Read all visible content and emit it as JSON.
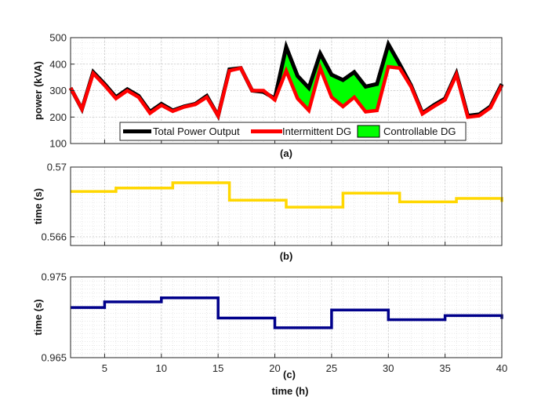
{
  "chart_data": [
    {
      "type": "area",
      "label": "(a)",
      "ylabel": "power (kVA)",
      "xlim": [
        2,
        40
      ],
      "ylim": [
        100,
        500
      ],
      "yticks": [
        100,
        200,
        300,
        400,
        500
      ],
      "grid": true,
      "legend_position": "bottom",
      "legend_orientation": "horizontal",
      "x": [
        2,
        3,
        4,
        5,
        6,
        7,
        8,
        9,
        10,
        11,
        12,
        13,
        14,
        15,
        16,
        17,
        18,
        19,
        20,
        21,
        22,
        23,
        24,
        25,
        26,
        27,
        28,
        29,
        30,
        31,
        32,
        33,
        34,
        35,
        36,
        37,
        38,
        39,
        40
      ],
      "series": [
        {
          "name": "Total Power Output",
          "color": "#000000",
          "values": [
            310,
            230,
            370,
            325,
            275,
            305,
            280,
            220,
            250,
            225,
            240,
            250,
            280,
            205,
            380,
            385,
            300,
            295,
            270,
            465,
            355,
            310,
            440,
            360,
            340,
            370,
            315,
            325,
            475,
            400,
            320,
            215,
            245,
            270,
            365,
            205,
            210,
            240,
            325
          ]
        },
        {
          "name": "Intermittent DG",
          "color": "#ff0000",
          "values": [
            310,
            230,
            365,
            320,
            270,
            300,
            275,
            215,
            245,
            222,
            238,
            248,
            275,
            205,
            375,
            385,
            300,
            300,
            265,
            375,
            270,
            225,
            385,
            275,
            240,
            275,
            220,
            225,
            390,
            385,
            315,
            212,
            240,
            265,
            360,
            200,
            205,
            235,
            320
          ]
        },
        {
          "name": "Controllable DG",
          "color": "#00ff00",
          "kind": "fill-between"
        }
      ]
    },
    {
      "type": "line",
      "step": true,
      "label": "(b)",
      "ylabel": "time (s)",
      "xlim": [
        2,
        40
      ],
      "ylim": [
        0.5655,
        0.57
      ],
      "yticks": [
        0.566,
        0.57
      ],
      "grid": true,
      "series": [
        {
          "color": "#ffd700",
          "x": [
            2,
            6,
            11,
            16,
            21,
            26,
            31,
            36,
            40
          ],
          "values": [
            0.5686,
            0.5688,
            0.5691,
            0.5681,
            0.5677,
            0.5685,
            0.568,
            0.5682,
            0.568
          ]
        }
      ]
    },
    {
      "type": "line",
      "step": true,
      "label": "(c)",
      "xlabel": "time (h)",
      "ylabel": "time (s)",
      "xlim": [
        2,
        40
      ],
      "ylim": [
        0.965,
        0.975
      ],
      "yticks": [
        0.965,
        0.975
      ],
      "xticks": [
        5,
        10,
        15,
        20,
        25,
        30,
        35,
        40
      ],
      "grid": true,
      "series": [
        {
          "color": "#00008b",
          "x": [
            2,
            5,
            10,
            15,
            20,
            25,
            30,
            35,
            40
          ],
          "values": [
            0.9712,
            0.9719,
            0.9724,
            0.9699,
            0.9687,
            0.9709,
            0.9697,
            0.9702,
            0.9698
          ]
        }
      ]
    }
  ]
}
